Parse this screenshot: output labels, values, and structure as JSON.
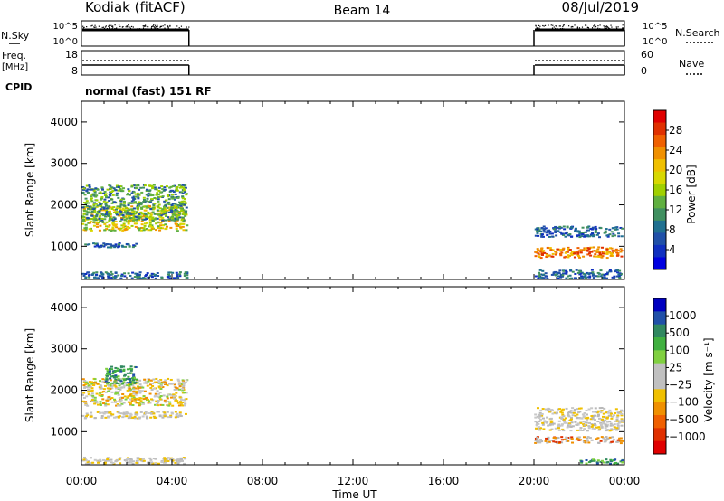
{
  "header": {
    "station": "Kodiak (fitACF)",
    "beam": "Beam 14",
    "date": "08/Jul/2019"
  },
  "status_panels": {
    "left_labels": {
      "nsky": "N.Sky",
      "freq": "Freq.",
      "freq_unit": "[MHz]",
      "cpid": "CPID"
    },
    "right_labels": {
      "nsearch": "N.Search",
      "nave": "Nave"
    },
    "noise_ticks_left": [
      "10^5",
      "10^0"
    ],
    "noise_ticks_right": [
      "10^5",
      "10^0"
    ],
    "freq_ticks": [
      "18",
      "8"
    ],
    "nave_ticks": [
      "60",
      "0"
    ],
    "cpid_text": "normal (fast) 151 RF"
  },
  "chart_data": [
    {
      "type": "heatmap",
      "name": "power",
      "ylabel": "Slant Range [km]",
      "ylim": [
        200,
        4500
      ],
      "yticks": [
        1000,
        2000,
        3000,
        4000
      ],
      "colorbar": {
        "label": "Power [dB]",
        "ticks": [
          "28",
          "24",
          "20",
          "16",
          "12",
          "8",
          "4"
        ],
        "colors": [
          "#e00000",
          "#e03000",
          "#f06000",
          "#f09000",
          "#f0c000",
          "#d8d800",
          "#a0d000",
          "#60b040",
          "#409060",
          "#207090",
          "#2050a8",
          "#1030c0",
          "#0000e0"
        ]
      },
      "echo_bands": [
        {
          "t_start": 0.0,
          "t_end": 4.75,
          "range_start": 1350,
          "range_end": 2000,
          "level": "mid-high"
        },
        {
          "t_start": 0.0,
          "t_end": 4.75,
          "range_start": 1600,
          "range_end": 2500,
          "level": "mid"
        },
        {
          "t_start": 0.0,
          "t_end": 2.5,
          "range_start": 950,
          "range_end": 1100,
          "level": "low"
        },
        {
          "t_start": 0.0,
          "t_end": 4.75,
          "range_start": 200,
          "range_end": 400,
          "level": "low"
        },
        {
          "t_start": 20.0,
          "t_end": 24.0,
          "range_start": 1200,
          "range_end": 1500,
          "level": "low"
        },
        {
          "t_start": 20.0,
          "t_end": 24.0,
          "range_start": 700,
          "range_end": 1000,
          "level": "high"
        },
        {
          "t_start": 20.0,
          "t_end": 24.0,
          "range_start": 200,
          "range_end": 450,
          "level": "low"
        }
      ]
    },
    {
      "type": "heatmap",
      "name": "velocity",
      "ylabel": "Slant Range [km]",
      "ylim": [
        200,
        4500
      ],
      "yticks": [
        1000,
        2000,
        3000,
        4000
      ],
      "colorbar": {
        "label": "Velocity [m s⁻¹]",
        "ticks": [
          "1000",
          "500",
          "100",
          "25",
          "−25",
          "−100",
          "−500",
          "−1000"
        ],
        "colors": [
          "#0000c0",
          "#2050a8",
          "#308860",
          "#40b040",
          "#80d040",
          "#c0c0c0",
          "#c0c0c0",
          "#f0c000",
          "#f09000",
          "#f06000",
          "#e03000",
          "#e00000"
        ]
      },
      "echo_bands": [
        {
          "t_start": 0.0,
          "t_end": 4.75,
          "range_start": 1300,
          "range_end": 1500,
          "level": "grey"
        },
        {
          "t_start": 0.0,
          "t_end": 4.75,
          "range_start": 1600,
          "range_end": 2300,
          "level": "mixed"
        },
        {
          "t_start": 1.0,
          "t_end": 2.5,
          "range_start": 2100,
          "range_end": 2600,
          "level": "green"
        },
        {
          "t_start": 0.0,
          "t_end": 4.75,
          "range_start": 200,
          "range_end": 400,
          "level": "grey"
        },
        {
          "t_start": 20.0,
          "t_end": 24.0,
          "range_start": 1000,
          "range_end": 1600,
          "level": "grey"
        },
        {
          "t_start": 20.0,
          "t_end": 24.0,
          "range_start": 700,
          "range_end": 900,
          "level": "grey-orange"
        },
        {
          "t_start": 22.0,
          "t_end": 24.0,
          "range_start": 200,
          "range_end": 350,
          "level": "green"
        }
      ]
    }
  ],
  "x_axis": {
    "label": "Time UT",
    "ticks": [
      "00:00",
      "04:00",
      "08:00",
      "12:00",
      "16:00",
      "20:00",
      "00:00"
    ],
    "xlim": [
      0,
      24
    ]
  },
  "operating_intervals": [
    {
      "t_start": 0.0,
      "t_end": 4.75
    },
    {
      "t_start": 20.0,
      "t_end": 24.0
    }
  ]
}
